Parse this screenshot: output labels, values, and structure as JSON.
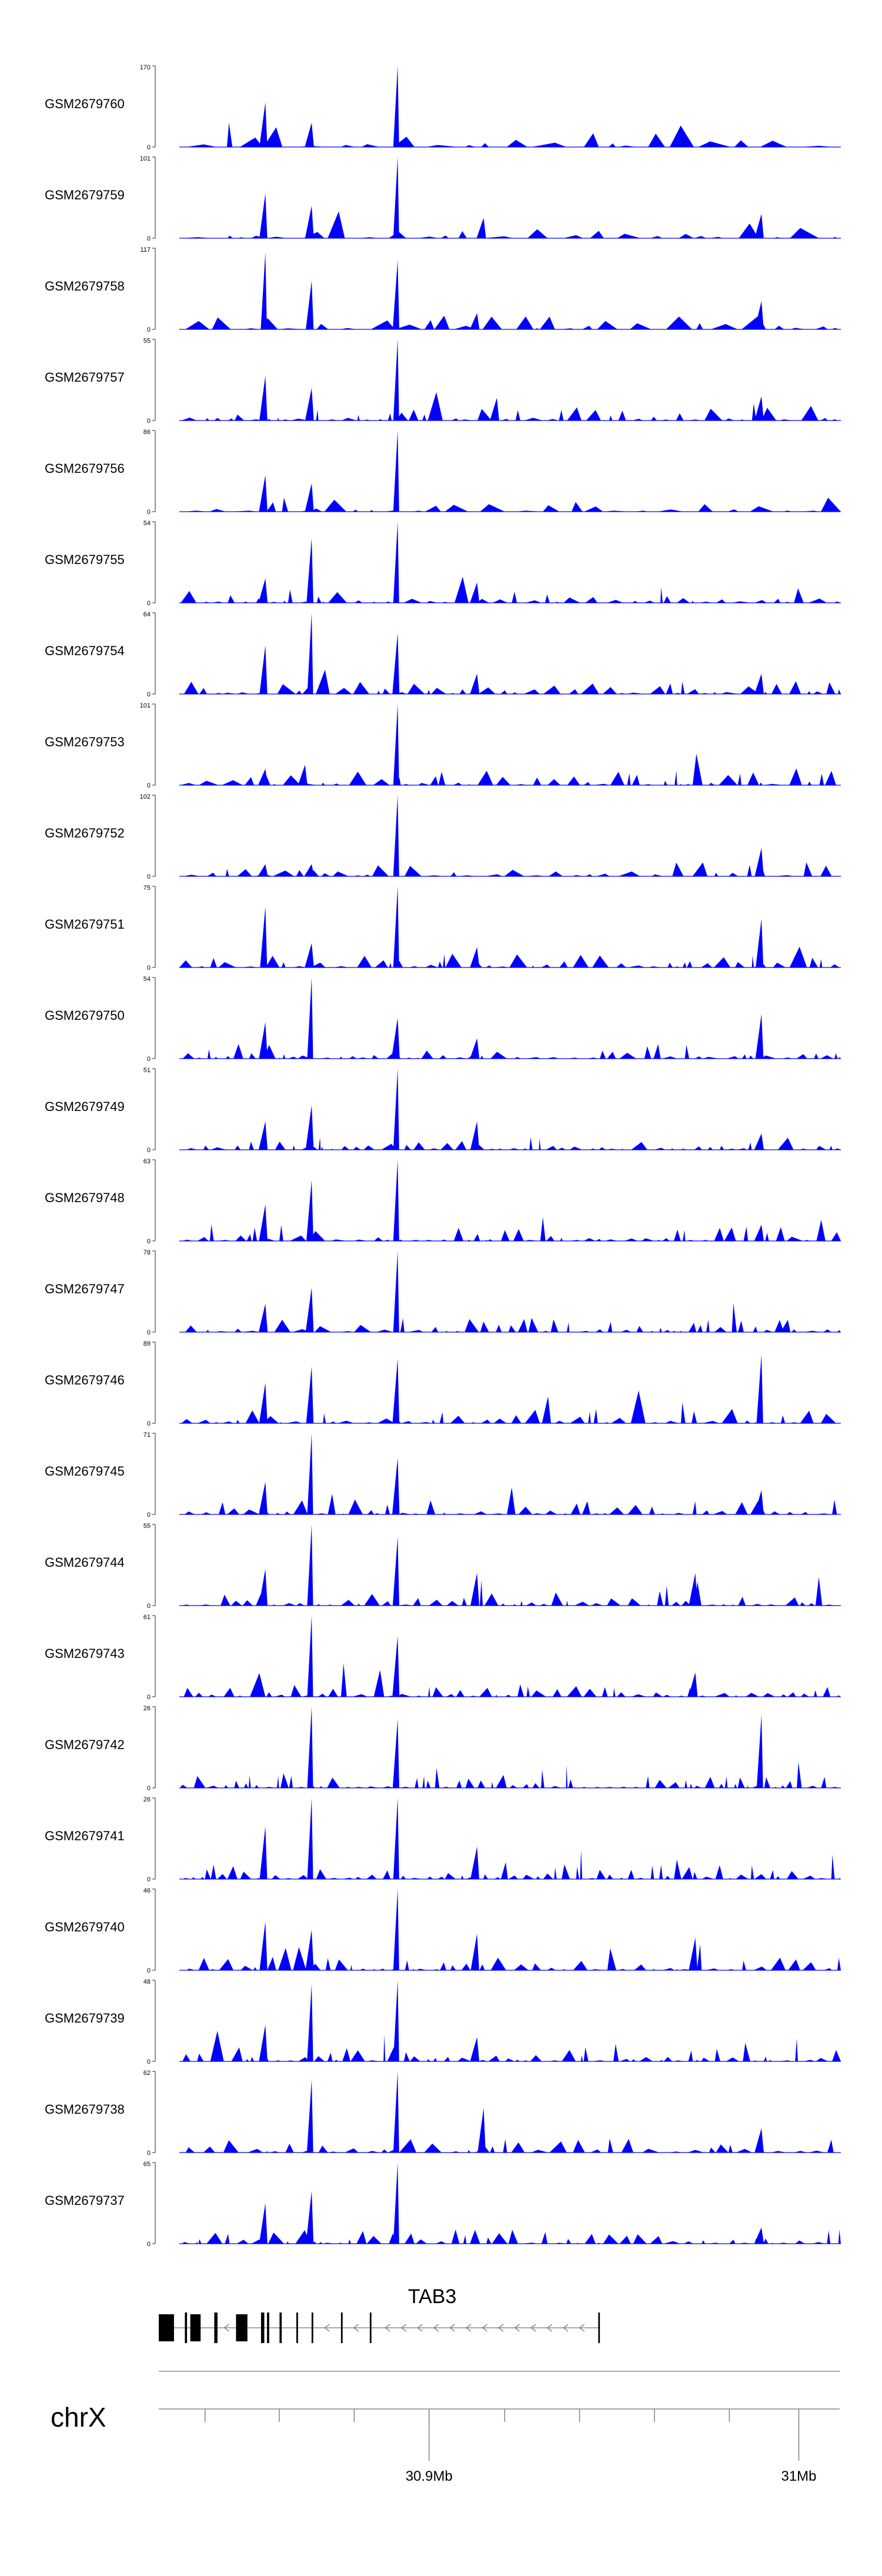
{
  "chart_data": {
    "type": "area",
    "title": "",
    "xlabel": "",
    "ylabel": "",
    "tracks": [
      {
        "name": "GSM2679760",
        "ymax": "170",
        "ymin": "0",
        "peak": 170,
        "seed": 11,
        "density": 0.45,
        "peaks": [
          [
            0.13,
            0.55
          ],
          [
            0.2,
            0.3
          ],
          [
            0.33,
            1.0
          ]
        ]
      },
      {
        "name": "GSM2679759",
        "ymax": "101",
        "ymin": "0",
        "peak": 101,
        "seed": 12,
        "density": 0.45,
        "peaks": [
          [
            0.13,
            0.55
          ],
          [
            0.2,
            0.4
          ],
          [
            0.33,
            1.0
          ],
          [
            0.46,
            0.25
          ],
          [
            0.88,
            0.3
          ]
        ]
      },
      {
        "name": "GSM2679758",
        "ymax": "117",
        "ymin": "0",
        "peak": 117,
        "seed": 13,
        "density": 0.55,
        "peaks": [
          [
            0.13,
            0.95
          ],
          [
            0.2,
            0.6
          ],
          [
            0.33,
            0.85
          ],
          [
            0.45,
            0.2
          ],
          [
            0.88,
            0.35
          ]
        ]
      },
      {
        "name": "GSM2679757",
        "ymax": "55",
        "ymin": "0",
        "peak": 55,
        "seed": 14,
        "density": 0.85,
        "peaks": [
          [
            0.13,
            0.55
          ],
          [
            0.2,
            0.4
          ],
          [
            0.33,
            1.0
          ],
          [
            0.48,
            0.28
          ],
          [
            0.88,
            0.3
          ]
        ]
      },
      {
        "name": "GSM2679756",
        "ymax": "86",
        "ymin": "0",
        "peak": 86,
        "seed": 15,
        "density": 0.55,
        "peaks": [
          [
            0.13,
            0.45
          ],
          [
            0.2,
            0.35
          ],
          [
            0.33,
            1.0
          ]
        ]
      },
      {
        "name": "GSM2679755",
        "ymax": "54",
        "ymin": "0",
        "peak": 54,
        "seed": 16,
        "density": 0.8,
        "peaks": [
          [
            0.13,
            0.3
          ],
          [
            0.2,
            0.8
          ],
          [
            0.33,
            1.0
          ],
          [
            0.45,
            0.25
          ]
        ]
      },
      {
        "name": "GSM2679754",
        "ymax": "64",
        "ymin": "0",
        "peak": 64,
        "seed": 17,
        "density": 0.85,
        "peaks": [
          [
            0.13,
            0.6
          ],
          [
            0.2,
            1.0
          ],
          [
            0.33,
            0.75
          ],
          [
            0.45,
            0.25
          ],
          [
            0.88,
            0.25
          ]
        ]
      },
      {
        "name": "GSM2679753",
        "ymax": "101",
        "ymin": "0",
        "peak": 101,
        "seed": 18,
        "density": 0.75,
        "peaks": [
          [
            0.13,
            0.2
          ],
          [
            0.19,
            0.25
          ],
          [
            0.33,
            1.0
          ]
        ]
      },
      {
        "name": "GSM2679752",
        "ymax": "102",
        "ymin": "0",
        "peak": 102,
        "seed": 19,
        "density": 0.7,
        "peaks": [
          [
            0.13,
            0.15
          ],
          [
            0.2,
            0.15
          ],
          [
            0.33,
            1.0
          ],
          [
            0.88,
            0.35
          ]
        ]
      },
      {
        "name": "GSM2679751",
        "ymax": "75",
        "ymin": "0",
        "peak": 75,
        "seed": 20,
        "density": 0.9,
        "peaks": [
          [
            0.13,
            0.75
          ],
          [
            0.2,
            0.3
          ],
          [
            0.33,
            1.0
          ],
          [
            0.45,
            0.25
          ],
          [
            0.88,
            0.6
          ]
        ]
      },
      {
        "name": "GSM2679750",
        "ymax": "54",
        "ymin": "0",
        "peak": 54,
        "seed": 21,
        "density": 0.95,
        "peaks": [
          [
            0.13,
            0.45
          ],
          [
            0.2,
            1.0
          ],
          [
            0.33,
            0.5
          ],
          [
            0.45,
            0.25
          ],
          [
            0.88,
            0.55
          ]
        ]
      },
      {
        "name": "GSM2679749",
        "ymax": "51",
        "ymin": "0",
        "peak": 51,
        "seed": 22,
        "density": 0.95,
        "peaks": [
          [
            0.13,
            0.35
          ],
          [
            0.2,
            0.55
          ],
          [
            0.33,
            1.0
          ],
          [
            0.45,
            0.35
          ],
          [
            0.88,
            0.2
          ]
        ]
      },
      {
        "name": "GSM2679748",
        "ymax": "63",
        "ymin": "0",
        "peak": 63,
        "seed": 23,
        "density": 0.95,
        "peaks": [
          [
            0.13,
            0.45
          ],
          [
            0.2,
            0.75
          ],
          [
            0.33,
            1.0
          ],
          [
            0.88,
            0.2
          ]
        ]
      },
      {
        "name": "GSM2679747",
        "ymax": "78",
        "ymin": "0",
        "peak": 78,
        "seed": 24,
        "density": 0.9,
        "peaks": [
          [
            0.13,
            0.35
          ],
          [
            0.2,
            0.55
          ],
          [
            0.33,
            1.0
          ],
          [
            0.92,
            0.15
          ]
        ]
      },
      {
        "name": "GSM2679746",
        "ymax": "89",
        "ymin": "0",
        "peak": 89,
        "seed": 25,
        "density": 0.9,
        "peaks": [
          [
            0.13,
            0.5
          ],
          [
            0.2,
            0.7
          ],
          [
            0.33,
            0.8
          ],
          [
            0.88,
            0.85
          ]
        ]
      },
      {
        "name": "GSM2679745",
        "ymax": "71",
        "ymin": "0",
        "peak": 71,
        "seed": 26,
        "density": 0.95,
        "peaks": [
          [
            0.13,
            0.4
          ],
          [
            0.2,
            1.0
          ],
          [
            0.33,
            0.7
          ],
          [
            0.88,
            0.3
          ]
        ]
      },
      {
        "name": "GSM2679744",
        "ymax": "55",
        "ymin": "0",
        "peak": 55,
        "seed": 27,
        "density": 1.0,
        "peaks": [
          [
            0.13,
            0.45
          ],
          [
            0.2,
            1.0
          ],
          [
            0.33,
            0.85
          ],
          [
            0.45,
            0.4
          ],
          [
            0.78,
            0.4
          ]
        ]
      },
      {
        "name": "GSM2679743",
        "ymax": "61",
        "ymin": "0",
        "peak": 61,
        "seed": 28,
        "density": 1.0,
        "peaks": [
          [
            0.2,
            1.0
          ],
          [
            0.33,
            0.75
          ],
          [
            0.78,
            0.3
          ]
        ]
      },
      {
        "name": "GSM2679742",
        "ymax": "26",
        "ymin": "0",
        "peak": 26,
        "seed": 29,
        "density": 1.25,
        "peaks": [
          [
            0.2,
            1.0
          ],
          [
            0.33,
            0.85
          ],
          [
            0.88,
            0.9
          ]
        ]
      },
      {
        "name": "GSM2679741",
        "ymax": "26",
        "ymin": "0",
        "peak": 26,
        "seed": 30,
        "density": 1.25,
        "peaks": [
          [
            0.13,
            0.65
          ],
          [
            0.2,
            1.0
          ],
          [
            0.33,
            1.0
          ],
          [
            0.45,
            0.4
          ]
        ]
      },
      {
        "name": "GSM2679740",
        "ymax": "46",
        "ymin": "0",
        "peak": 46,
        "seed": 31,
        "density": 1.0,
        "peaks": [
          [
            0.13,
            0.6
          ],
          [
            0.2,
            0.5
          ],
          [
            0.33,
            1.0
          ],
          [
            0.45,
            0.45
          ],
          [
            0.78,
            0.4
          ]
        ]
      },
      {
        "name": "GSM2679739",
        "ymax": "48",
        "ymin": "0",
        "peak": 48,
        "seed": 32,
        "density": 1.05,
        "peaks": [
          [
            0.13,
            0.45
          ],
          [
            0.2,
            0.95
          ],
          [
            0.33,
            1.0
          ],
          [
            0.45,
            0.3
          ]
        ]
      },
      {
        "name": "GSM2679738",
        "ymax": "62",
        "ymin": "0",
        "peak": 62,
        "seed": 33,
        "density": 0.9,
        "peaks": [
          [
            0.2,
            0.9
          ],
          [
            0.33,
            1.0
          ],
          [
            0.46,
            0.55
          ],
          [
            0.88,
            0.3
          ]
        ]
      },
      {
        "name": "GSM2679737",
        "ymax": "65",
        "ymin": "0",
        "peak": 65,
        "seed": 34,
        "density": 0.95,
        "peaks": [
          [
            0.13,
            0.5
          ],
          [
            0.2,
            0.65
          ],
          [
            0.33,
            1.0
          ],
          [
            0.88,
            0.2
          ]
        ]
      }
    ],
    "gene": {
      "name": "TAB3",
      "strand": "-",
      "exons": [
        [
          0.0,
          0.028
        ],
        [
          0.048,
          0.052
        ],
        [
          0.058,
          0.077
        ],
        [
          0.102,
          0.108
        ],
        [
          0.142,
          0.163
        ],
        [
          0.188,
          0.194
        ],
        [
          0.199,
          0.203
        ],
        [
          0.222,
          0.226
        ],
        [
          0.253,
          0.256
        ],
        [
          0.281,
          0.284
        ],
        [
          0.335,
          0.338
        ],
        [
          0.388,
          0.391
        ],
        [
          0.808,
          0.811
        ]
      ]
    },
    "chromosome": "chrX",
    "axis": {
      "ticks": [
        0.068,
        0.177,
        0.287,
        0.397,
        0.508,
        0.618,
        0.728,
        0.838
      ],
      "labeled_ticks": [
        {
          "pos": 0.397,
          "label": "30.9Mb"
        },
        {
          "pos": 0.94,
          "label": "31Mb"
        }
      ]
    },
    "colors": {
      "fill": "#0000ff",
      "axis": "#555555",
      "gene": "#000000",
      "intron": "#888888"
    }
  }
}
